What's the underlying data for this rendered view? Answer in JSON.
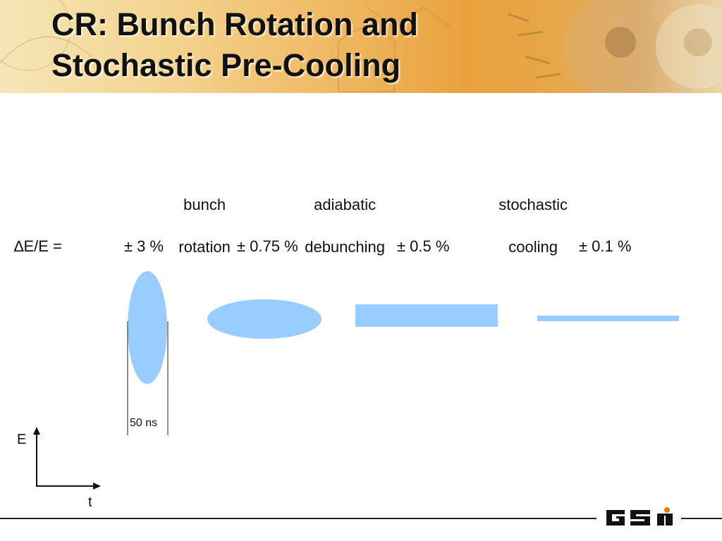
{
  "slide": {
    "title_line1": "CR: Bunch Rotation and",
    "title_line2": "Stochastic Pre-Cooling"
  },
  "stages": [
    {
      "line1": "bunch",
      "line2": "rotation"
    },
    {
      "line1": "adiabatic",
      "line2": "debunching"
    },
    {
      "line1": "stochastic",
      "line2": "cooling"
    }
  ],
  "spread": {
    "label": "∆E/E =",
    "values": [
      "± 3 %",
      "± 0.75 %",
      "± 0.5 %",
      "± 0.1 %"
    ]
  },
  "bunch_width_label": "50 ns",
  "axes": {
    "y": "E",
    "x": "t"
  },
  "colors": {
    "bunch_fill": "#99ccff",
    "title": "#111111",
    "banner": "#eeb45a"
  },
  "logo": {
    "text": "GSI"
  }
}
